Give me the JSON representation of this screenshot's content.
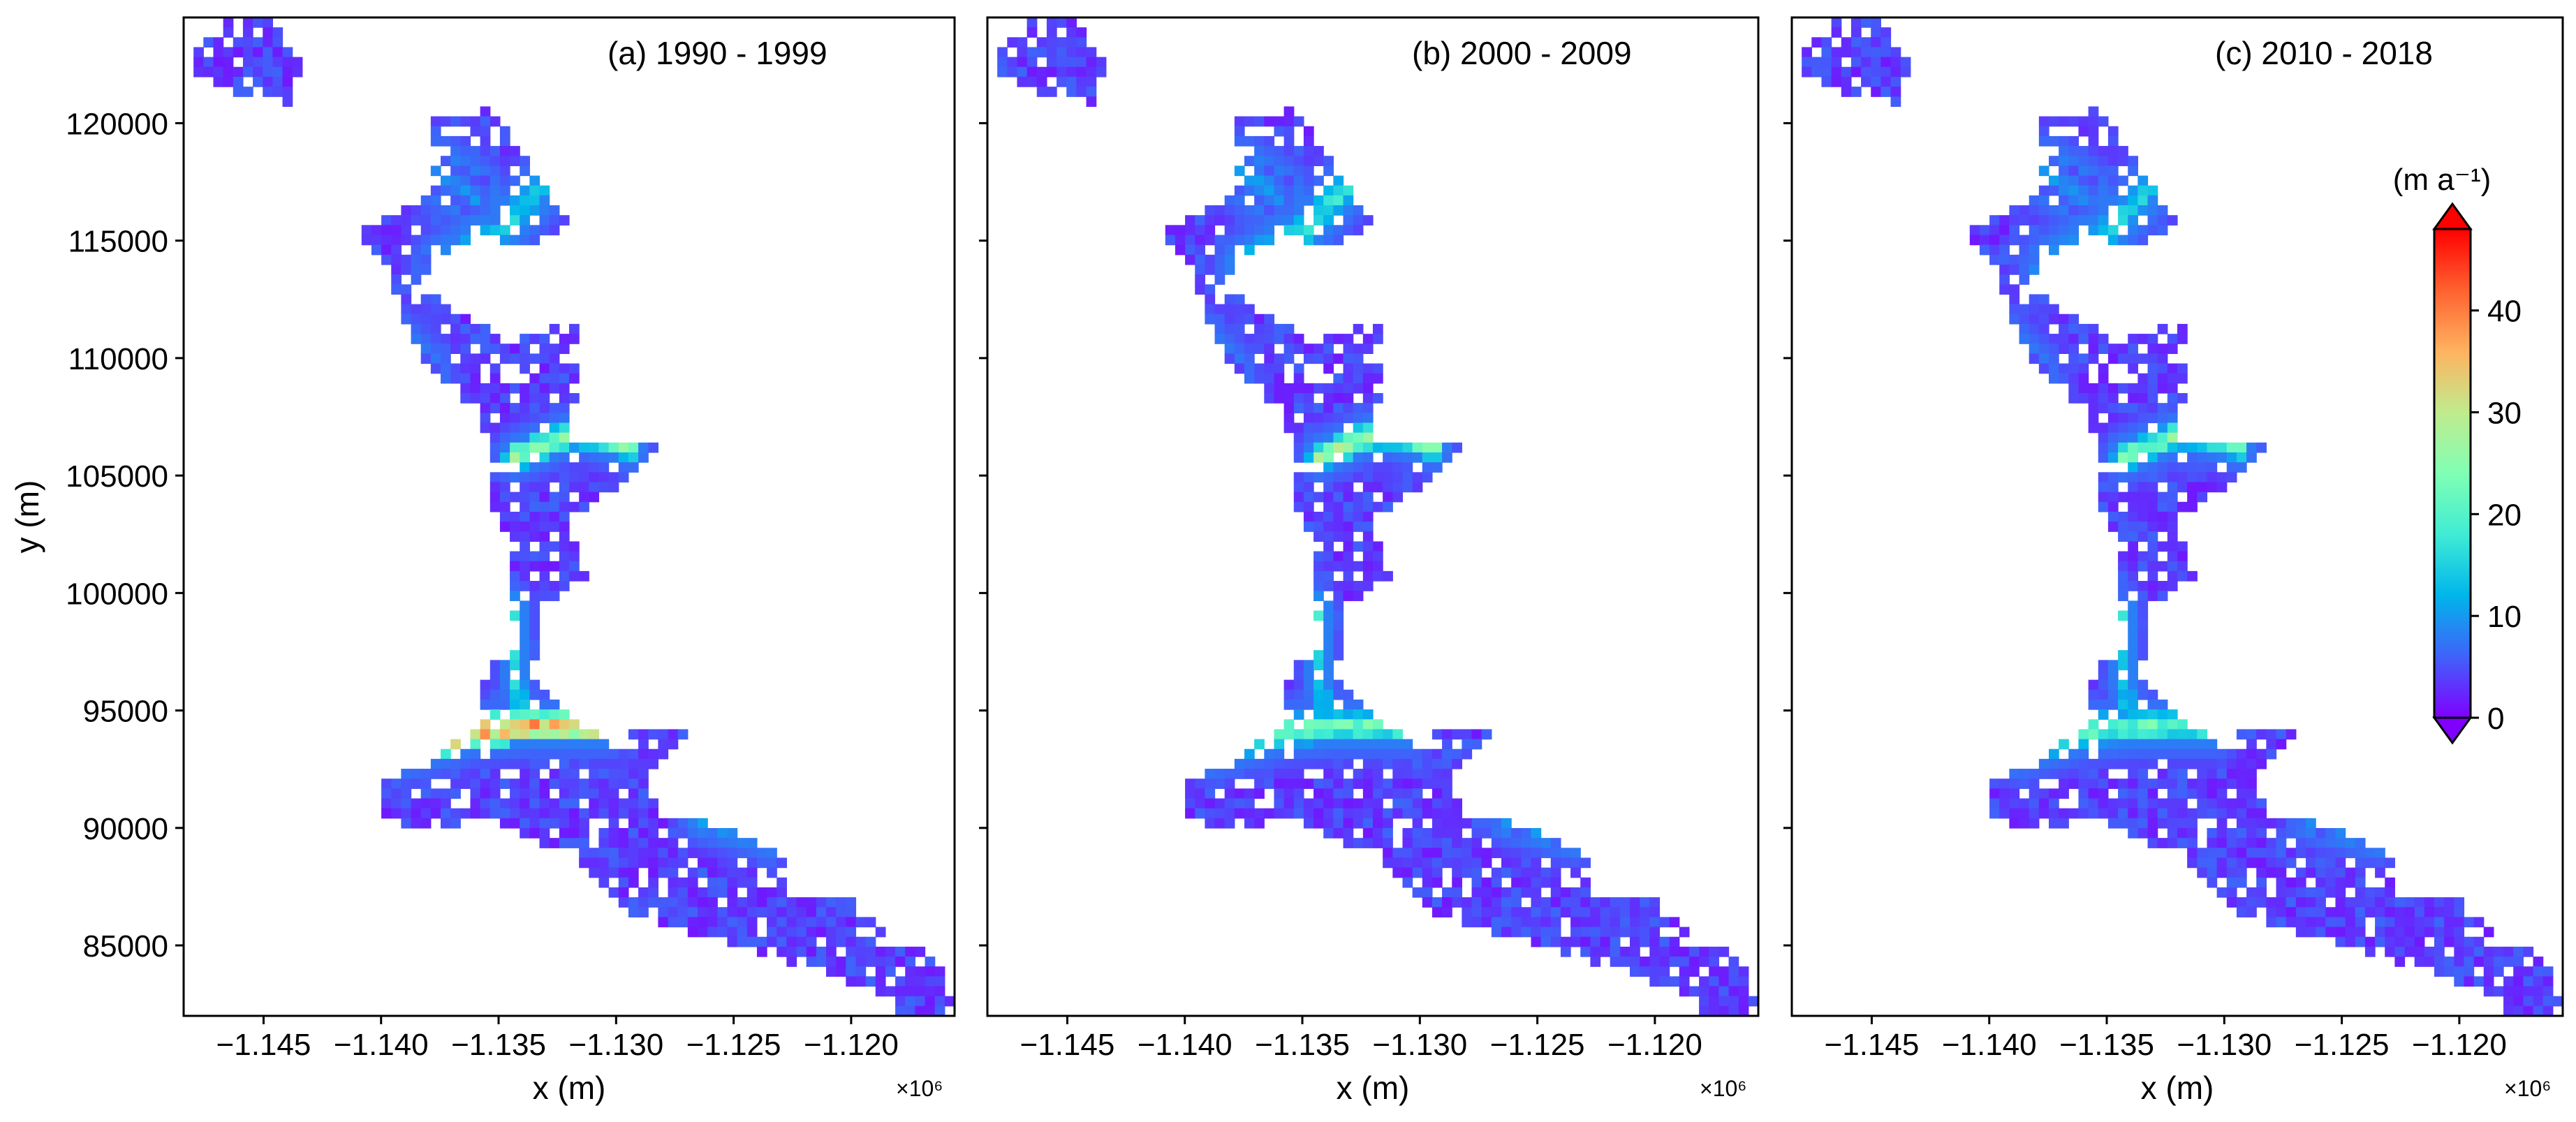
{
  "chart_data": {
    "type": "heatmap",
    "panels": [
      {
        "title": "(a) 1990 - 1999"
      },
      {
        "title": "(b) 2000 - 2009"
      },
      {
        "title": "(c) 2010 - 2018"
      }
    ],
    "xlabel": "x (m)",
    "ylabel": "y (m)",
    "x_offset_label": "×10⁶",
    "xlim": [
      -1.1484,
      -1.1156
    ],
    "ylim": [
      82000,
      124500
    ],
    "x_ticks": [
      -1.145,
      -1.14,
      -1.135,
      -1.13,
      -1.125,
      -1.12
    ],
    "x_tick_labels": [
      "−1.145",
      "−1.140",
      "−1.135",
      "−1.130",
      "−1.125",
      "−1.120"
    ],
    "y_ticks": [
      85000,
      90000,
      95000,
      100000,
      105000,
      110000,
      115000,
      120000
    ],
    "y_tick_labels": [
      "85000",
      "90000",
      "95000",
      "100000",
      "105000",
      "110000",
      "115000",
      "120000"
    ],
    "colorbar": {
      "label": "(m a⁻¹)",
      "range": [
        0,
        48
      ],
      "ticks": [
        0,
        10,
        20,
        30,
        40
      ],
      "tick_labels": [
        "0",
        "10",
        "20",
        "30",
        "40"
      ],
      "colormap": "rainbow",
      "extend": "both"
    },
    "colors": {
      "low": "#8000ff",
      "mid": "#80ffb4",
      "high": "#ff0000"
    }
  }
}
